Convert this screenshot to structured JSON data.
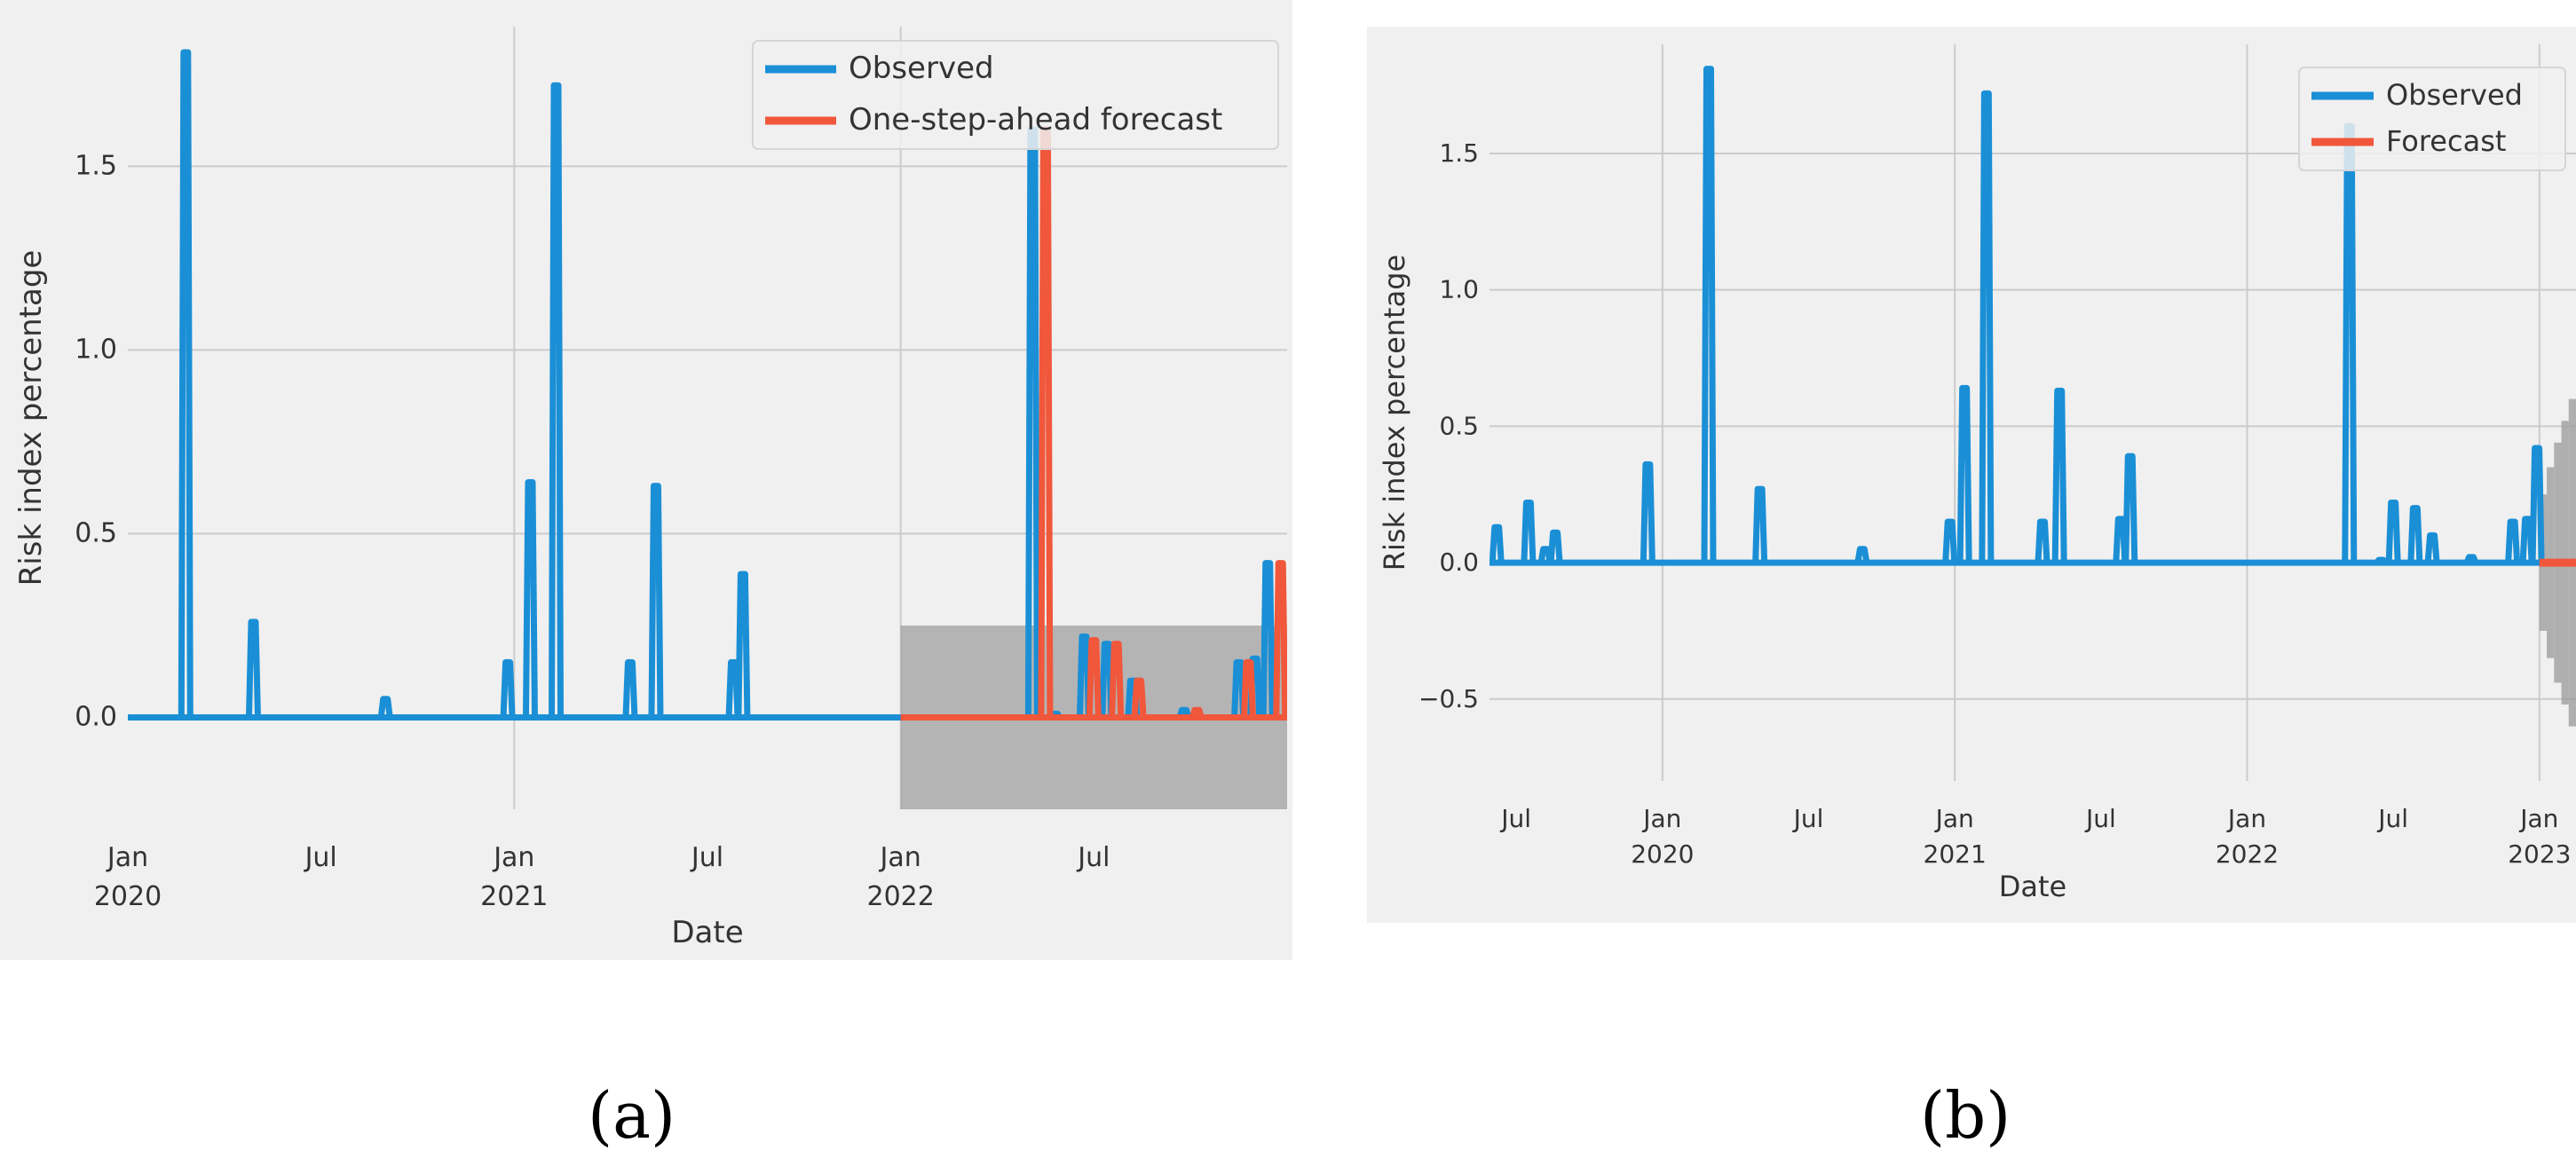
{
  "colors": {
    "observed": "#1a8fd6",
    "forecast": "#f0573b",
    "ci": "#9a9a9a",
    "plot_bg": "#f0f0f0",
    "grid": "#cbcbcb"
  },
  "captions": [
    "(a)",
    "(b)"
  ],
  "chart_data": [
    {
      "id": "a",
      "type": "line",
      "title": "",
      "xlabel": "Date",
      "ylabel": "Risk index percentage",
      "x_unit": "months since Jan 2020",
      "xlim": [
        0,
        36
      ],
      "ylim": [
        -0.25,
        1.88
      ],
      "yticks": [
        0.0,
        0.5,
        1.0,
        1.5
      ],
      "ytick_labels": [
        "0.0",
        "0.5",
        "1.0",
        "1.5"
      ],
      "xticks": [
        {
          "x": 0,
          "label": [
            "Jan",
            "2020"
          ]
        },
        {
          "x": 6,
          "label": [
            "Jul"
          ]
        },
        {
          "x": 12,
          "label": [
            "Jan",
            "2021"
          ]
        },
        {
          "x": 18,
          "label": [
            "Jul"
          ]
        },
        {
          "x": 24,
          "label": [
            "Jan",
            "2022"
          ]
        },
        {
          "x": 30,
          "label": [
            "Jul"
          ]
        }
      ],
      "vgrid": [
        12,
        24
      ],
      "legend": {
        "position": "top-right",
        "entries": [
          "Observed",
          "One-step-ahead forecast"
        ]
      },
      "series": [
        {
          "name": "Observed",
          "spikes": [
            {
              "x": 1.8,
              "y": 1.81
            },
            {
              "x": 3.9,
              "y": 0.26
            },
            {
              "x": 8.0,
              "y": 0.05
            },
            {
              "x": 11.8,
              "y": 0.15
            },
            {
              "x": 12.5,
              "y": 0.64
            },
            {
              "x": 13.3,
              "y": 1.72
            },
            {
              "x": 15.6,
              "y": 0.15
            },
            {
              "x": 16.4,
              "y": 0.63
            },
            {
              "x": 18.8,
              "y": 0.15
            },
            {
              "x": 19.1,
              "y": 0.39
            },
            {
              "x": 28.1,
              "y": 1.6
            },
            {
              "x": 28.8,
              "y": 0.01
            },
            {
              "x": 29.7,
              "y": 0.22
            },
            {
              "x": 30.4,
              "y": 0.2
            },
            {
              "x": 31.2,
              "y": 0.1
            },
            {
              "x": 32.8,
              "y": 0.02
            },
            {
              "x": 34.5,
              "y": 0.15
            },
            {
              "x": 35.0,
              "y": 0.16
            },
            {
              "x": 35.4,
              "y": 0.42
            }
          ]
        },
        {
          "name": "One-step-ahead forecast",
          "x_start": 24,
          "spikes": [
            {
              "x": 28.5,
              "y": 1.6
            },
            {
              "x": 30.0,
              "y": 0.21
            },
            {
              "x": 30.7,
              "y": 0.2
            },
            {
              "x": 31.4,
              "y": 0.1
            },
            {
              "x": 33.2,
              "y": 0.02
            },
            {
              "x": 34.8,
              "y": 0.15
            },
            {
              "x": 35.8,
              "y": 0.42
            }
          ]
        }
      ],
      "confidence_band": {
        "x_start": 24,
        "x_end": 36,
        "lower": -0.25,
        "upper": 0.25
      }
    },
    {
      "id": "b",
      "type": "line",
      "title": "",
      "xlabel": "Date",
      "ylabel": "Risk index percentage",
      "x_unit": "months since Jan 2020",
      "xlim": [
        -7.1,
        37.5
      ],
      "ylim": [
        -0.8,
        1.9
      ],
      "yticks": [
        -0.5,
        0.0,
        0.5,
        1.0,
        1.5
      ],
      "ytick_labels": [
        "−0.5",
        "0.0",
        "0.5",
        "1.0",
        "1.5"
      ],
      "xticks": [
        {
          "x": -6,
          "label": [
            "Jul"
          ]
        },
        {
          "x": 0,
          "label": [
            "Jan",
            "2020"
          ]
        },
        {
          "x": 6,
          "label": [
            "Jul"
          ]
        },
        {
          "x": 12,
          "label": [
            "Jan",
            "2021"
          ]
        },
        {
          "x": 18,
          "label": [
            "Jul"
          ]
        },
        {
          "x": 24,
          "label": [
            "Jan",
            "2022"
          ]
        },
        {
          "x": 30,
          "label": [
            "Jul"
          ]
        },
        {
          "x": 36,
          "label": [
            "Jan",
            "2023"
          ]
        }
      ],
      "vgrid": [
        0,
        12,
        24,
        36
      ],
      "legend": {
        "position": "top-right",
        "entries": [
          "Observed",
          "Forecast"
        ]
      },
      "series": [
        {
          "name": "Observed",
          "spikes": [
            {
              "x": -6.8,
              "y": 0.13
            },
            {
              "x": -5.5,
              "y": 0.22
            },
            {
              "x": -4.8,
              "y": 0.05
            },
            {
              "x": -4.4,
              "y": 0.11
            },
            {
              "x": -0.6,
              "y": 0.36
            },
            {
              "x": 1.9,
              "y": 1.81
            },
            {
              "x": 4.0,
              "y": 0.27
            },
            {
              "x": 8.2,
              "y": 0.05
            },
            {
              "x": 11.8,
              "y": 0.15
            },
            {
              "x": 12.4,
              "y": 0.64
            },
            {
              "x": 13.3,
              "y": 1.72
            },
            {
              "x": 15.6,
              "y": 0.15
            },
            {
              "x": 16.3,
              "y": 0.63
            },
            {
              "x": 18.8,
              "y": 0.16
            },
            {
              "x": 19.2,
              "y": 0.39
            },
            {
              "x": 28.2,
              "y": 1.6
            },
            {
              "x": 29.5,
              "y": 0.01
            },
            {
              "x": 30.0,
              "y": 0.22
            },
            {
              "x": 30.9,
              "y": 0.2
            },
            {
              "x": 31.6,
              "y": 0.1
            },
            {
              "x": 33.2,
              "y": 0.02
            },
            {
              "x": 34.9,
              "y": 0.15
            },
            {
              "x": 35.5,
              "y": 0.16
            },
            {
              "x": 35.9,
              "y": 0.42
            }
          ]
        },
        {
          "name": "Forecast",
          "x_start": 36,
          "x_end": 37.5,
          "value": 0.0
        }
      ],
      "confidence_band": {
        "steps": [
          {
            "x": 36.0,
            "half": 0.25
          },
          {
            "x": 36.3,
            "half": 0.35
          },
          {
            "x": 36.6,
            "half": 0.44
          },
          {
            "x": 36.9,
            "half": 0.52
          },
          {
            "x": 37.2,
            "half": 0.6
          },
          {
            "x": 37.5,
            "half": 0.7
          }
        ]
      }
    }
  ]
}
